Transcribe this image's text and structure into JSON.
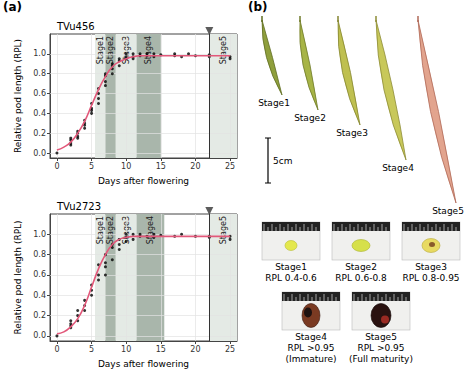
{
  "panel_labels": {
    "a": "(a)",
    "b": "(b)"
  },
  "chart_data": [
    {
      "type": "scatter",
      "title": "TVu456",
      "x_label": "Days after flowering",
      "y_label": "Relative pod length (RPL)",
      "xlim": [
        -1,
        26
      ],
      "xticks": [
        0,
        5,
        10,
        15,
        20,
        25
      ],
      "ylim": [
        -0.05,
        1.2
      ],
      "yticks": [
        {
          "value": 0,
          "label": "0.0"
        },
        0.2,
        0.4,
        0.6,
        0.8,
        {
          "value": 1,
          "label": "1.0"
        }
      ],
      "grid": true,
      "series": [
        {
          "type": "scatter",
          "color": "#000000",
          "marker": "circle",
          "x": [
            0,
            2,
            2,
            2,
            2,
            3,
            3,
            3,
            3,
            4,
            4,
            4,
            4,
            5,
            5,
            5,
            5,
            6,
            6,
            6,
            6,
            7,
            7,
            7,
            7,
            8,
            8,
            8,
            8,
            9,
            9,
            9,
            10,
            10,
            10,
            11,
            11,
            11,
            12,
            12,
            13,
            13,
            14,
            14,
            15,
            17,
            17,
            18,
            19,
            20,
            22,
            22,
            25,
            25
          ],
          "values": [
            0,
            0.1,
            0.13,
            0.15,
            0.08,
            0.17,
            0.2,
            0.22,
            0.15,
            0.3,
            0.28,
            0.33,
            0.25,
            0.45,
            0.4,
            0.5,
            0.43,
            0.55,
            0.6,
            0.65,
            0.5,
            0.72,
            0.78,
            0.68,
            0.8,
            0.85,
            0.8,
            0.9,
            0.88,
            0.93,
            0.88,
            0.95,
            0.95,
            0.97,
            1.0,
            0.97,
            1.0,
            0.95,
            1.0,
            0.98,
            0.98,
            1.0,
            0.97,
            1.0,
            0.99,
            1.0,
            0.98,
            0.97,
            1.0,
            0.98,
            0.97,
            0.99,
            0.97,
            0.95
          ]
        },
        {
          "type": "line",
          "color": "#e2587a",
          "marker": "none",
          "line_style": "solid",
          "x": [
            0,
            1,
            2,
            3,
            4,
            5,
            6,
            7,
            8,
            9,
            10,
            11,
            12,
            13,
            14,
            15,
            16,
            17,
            18,
            19,
            20,
            21,
            22,
            23,
            24,
            25
          ],
          "values": [
            0.03,
            0.06,
            0.11,
            0.2,
            0.32,
            0.48,
            0.64,
            0.77,
            0.87,
            0.92,
            0.95,
            0.97,
            0.98,
            0.98,
            0.98,
            0.98,
            0.98,
            0.98,
            0.98,
            0.98,
            0.98,
            0.98,
            0.98,
            0.98,
            0.98,
            0.98
          ]
        }
      ],
      "stages": [
        {
          "label": "Stage1",
          "start": 5.5,
          "end": 7,
          "color": "#e4eae5"
        },
        {
          "label": "Stage2",
          "start": 7,
          "end": 8.5,
          "color": "#a9b6ab"
        },
        {
          "label": "Stage3",
          "start": 8.5,
          "end": 11.5,
          "color": "#e4eae5"
        },
        {
          "label": "Stage4",
          "start": 11.5,
          "end": 15,
          "color": "#a9b6ab"
        },
        {
          "label": "Stage5",
          "start": 22,
          "end": 26,
          "color": "#e4eae5"
        }
      ],
      "maturity_line": {
        "x": 22,
        "color": "#333333",
        "marker": "triangle"
      }
    },
    {
      "type": "scatter",
      "title": "TVu2723",
      "x_label": "Days after flowering",
      "y_label": "Relative pod length (RPL)",
      "xlim": [
        -1,
        26
      ],
      "xticks": [
        0,
        5,
        10,
        15,
        20,
        25
      ],
      "ylim": [
        -0.05,
        1.2
      ],
      "yticks": [
        {
          "value": 0,
          "label": "0.0"
        },
        0.2,
        0.4,
        0.6,
        0.8,
        {
          "value": 1,
          "label": "1.0"
        }
      ],
      "grid": true,
      "series": [
        {
          "type": "scatter",
          "color": "#000000",
          "marker": "circle",
          "x": [
            0,
            2,
            2,
            2,
            2,
            3,
            3,
            3,
            4,
            4,
            4,
            5,
            5,
            5,
            6,
            6,
            6,
            7,
            7,
            7,
            7,
            8,
            8,
            8,
            9,
            9,
            9,
            10,
            10,
            10,
            11,
            11,
            12,
            12,
            13,
            14,
            14,
            15,
            17,
            18,
            20,
            22,
            22,
            25,
            25
          ],
          "values": [
            0,
            0.1,
            0.12,
            0.15,
            0.08,
            0.2,
            0.15,
            0.25,
            0.3,
            0.35,
            0.25,
            0.5,
            0.45,
            0.4,
            0.6,
            0.7,
            0.55,
            0.72,
            0.68,
            0.8,
            0.6,
            0.87,
            0.9,
            0.75,
            0.9,
            0.95,
            0.85,
            0.97,
            1.0,
            0.93,
            0.95,
            1.0,
            1.0,
            0.98,
            0.98,
            1.0,
            0.97,
            0.99,
            0.98,
            1.0,
            0.98,
            0.97,
            0.98,
            0.95,
            0.98
          ]
        },
        {
          "type": "line",
          "color": "#e2587a",
          "marker": "none",
          "line_style": "solid",
          "x": [
            0,
            1,
            2,
            3,
            4,
            5,
            6,
            7,
            8,
            9,
            10,
            11,
            12,
            13,
            14,
            15,
            16,
            17,
            18,
            19,
            20,
            21,
            22,
            23,
            24,
            25
          ],
          "values": [
            0.02,
            0.04,
            0.09,
            0.17,
            0.3,
            0.48,
            0.66,
            0.8,
            0.9,
            0.95,
            0.97,
            0.98,
            0.98,
            0.98,
            0.98,
            0.98,
            0.98,
            0.98,
            0.98,
            0.98,
            0.98,
            0.98,
            0.98,
            0.98,
            0.98,
            0.98
          ]
        }
      ],
      "stages": [
        {
          "label": "Stage1",
          "start": 5.5,
          "end": 7,
          "color": "#e4eae5"
        },
        {
          "label": "Stage2",
          "start": 7,
          "end": 8.5,
          "color": "#a9b6ab"
        },
        {
          "label": "Stage3",
          "start": 8.5,
          "end": 11.5,
          "color": "#e4eae5"
        },
        {
          "label": "Stage4",
          "start": 11.5,
          "end": 15.5,
          "color": "#a9b6ab"
        },
        {
          "label": "Stage5",
          "start": 22,
          "end": 26,
          "color": "#e4eae5"
        }
      ],
      "maturity_line": {
        "x": 22,
        "color": "#333333",
        "marker": "triangle"
      }
    }
  ],
  "photos": {
    "pods": [
      "Stage1",
      "Stage2",
      "Stage3",
      "Stage4",
      "Stage5"
    ],
    "scale_bar": "5cm",
    "seeds": [
      {
        "stage": "Stage1",
        "caption": [
          "RPL 0.4-0.6"
        ]
      },
      {
        "stage": "Stage2",
        "caption": [
          "RPL 0.6-0.8"
        ]
      },
      {
        "stage": "Stage3",
        "caption": [
          "RPL 0.8-0.95"
        ]
      },
      {
        "stage": "Stage4",
        "caption": [
          "RPL >0.95",
          "(Immature)"
        ]
      },
      {
        "stage": "Stage5",
        "caption": [
          "RPL >0.95",
          "(Full maturity)"
        ]
      }
    ]
  }
}
